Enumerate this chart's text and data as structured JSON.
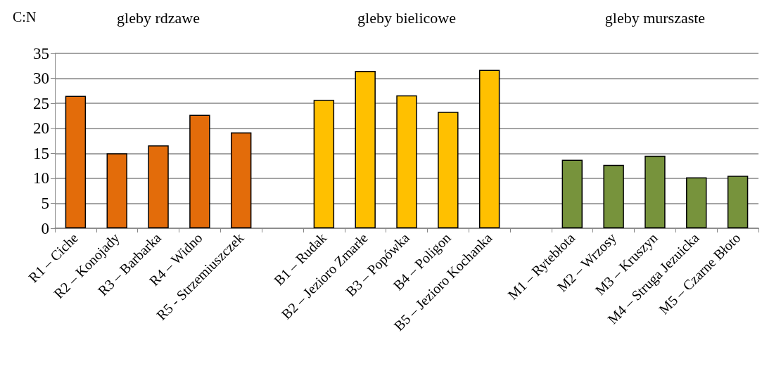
{
  "chart_data": {
    "type": "bar",
    "ylabel": "C:N",
    "categories": [
      "R1 – Ciche",
      "R2 – Konojady",
      "R3 – Barbarka",
      "R4 – Widno",
      "R5 - Strzemiuszczek",
      null,
      "B1 – Rudak",
      "B2 – Jezioro Zmarłe",
      "B3 – Popówka",
      "B4 – Poligon",
      "B5 – Jezioro Kochanka",
      null,
      "M1 – Rytebłota",
      "M2 – Wrzosy",
      "M3 – Kruszyn",
      "M4 – Struga Jezuicka",
      "M5 – Czarne Błoto"
    ],
    "values": [
      26.5,
      15.0,
      16.6,
      22.7,
      19.2,
      null,
      25.7,
      31.5,
      26.6,
      23.3,
      31.7,
      null,
      13.7,
      12.7,
      14.5,
      10.2,
      10.5
    ],
    "colors": [
      "#e36c0a",
      "#e36c0a",
      "#e36c0a",
      "#e36c0a",
      "#e36c0a",
      "#ffffff",
      "#ffc000",
      "#ffc000",
      "#ffc000",
      "#ffc000",
      "#ffc000",
      "#ffffff",
      "#77933c",
      "#77933c",
      "#77933c",
      "#77933c",
      "#77933c"
    ],
    "annotations": [
      "gleby rdzawe",
      "gleby bielicowe",
      "gleby murszaste"
    ],
    "ylim": [
      0,
      35
    ],
    "yticks": [
      0,
      5,
      10,
      15,
      20,
      25,
      30,
      35
    ],
    "grid": "y"
  }
}
